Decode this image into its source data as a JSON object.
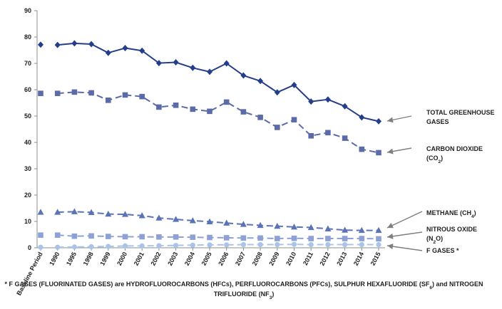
{
  "chart_data": {
    "type": "line",
    "categories": [
      "Baseline Period",
      "1990",
      "1995",
      "1998",
      "1999",
      "2000",
      "2001",
      "2002",
      "2003",
      "2004",
      "2005",
      "2006",
      "2007",
      "2008",
      "2009",
      "2010",
      "2011",
      "2012",
      "2013",
      "2014",
      "2015"
    ],
    "ylim": [
      0,
      90
    ],
    "yticks": [
      "0",
      "10",
      "20",
      "30",
      "40",
      "50",
      "60",
      "70",
      "80",
      "90"
    ],
    "grid": false,
    "series": [
      {
        "key": "total",
        "label_lines": [
          "TOTAL GREENHOUSE",
          "GASES"
        ],
        "color": "#253E8C",
        "marker": "diamond",
        "dashed": false,
        "values": [
          77.1,
          77.0,
          77.6,
          77.3,
          74.0,
          75.8,
          74.8,
          70.1,
          70.4,
          68.3,
          66.8,
          70.0,
          65.4,
          63.3,
          59.0,
          61.8,
          55.5,
          56.3,
          53.7,
          49.5,
          48.0
        ]
      },
      {
        "key": "co2",
        "label_lines": [
          "CARBON DIOXIDE",
          "(CO",
          "2",
          ")"
        ],
        "color": "#5B6BA7",
        "marker": "square",
        "dashed": true,
        "values": [
          58.6,
          58.6,
          59.1,
          58.8,
          56.0,
          58.0,
          57.4,
          53.4,
          54.1,
          52.6,
          51.8,
          55.3,
          51.6,
          49.5,
          45.7,
          48.6,
          42.5,
          43.7,
          41.6,
          37.4,
          36.1
        ]
      },
      {
        "key": "ch4",
        "label_lines": [
          "METHANE (CH",
          "4",
          ")"
        ],
        "color": "#5A72B6",
        "marker": "triangle",
        "dashed": true,
        "values": [
          13.5,
          13.5,
          13.7,
          13.4,
          12.8,
          12.7,
          12.2,
          11.3,
          10.8,
          10.3,
          9.9,
          9.4,
          8.9,
          8.5,
          8.2,
          7.9,
          7.7,
          7.2,
          6.7,
          6.6,
          6.6
        ]
      },
      {
        "key": "n2o",
        "label_lines": [
          "NITROUS OXIDE",
          "(N",
          "2",
          "O)"
        ],
        "color": "#8DA1D6",
        "marker": "square",
        "dashed": true,
        "values": [
          4.8,
          4.8,
          4.4,
          4.5,
          4.3,
          4.2,
          4.2,
          4.1,
          4.1,
          4.0,
          3.9,
          3.8,
          3.7,
          3.7,
          3.5,
          3.6,
          3.5,
          3.5,
          3.5,
          3.5,
          3.4
        ]
      },
      {
        "key": "fgas",
        "label_lines": [
          "F GASES *"
        ],
        "color": "#A9C4E8",
        "marker": "circle",
        "dashed": true,
        "values": [
          0.2,
          0.2,
          0.3,
          0.4,
          0.5,
          0.7,
          0.7,
          0.8,
          0.9,
          1.0,
          1.1,
          1.1,
          1.2,
          1.2,
          1.2,
          1.3,
          1.2,
          1.2,
          1.2,
          1.2,
          1.2
        ]
      }
    ],
    "footnote_line1": [
      "* F GASES (FLUORINATED GASES) are HYDROFLUOROCARBONS (HFCs), PERFLUOROCARBONS (PFCs), SULPHUR HEXAFLUORIDE (SF",
      "6",
      ") and NITROGEN"
    ],
    "footnote_line2": [
      "TRIFLUORIDE (NF",
      "3",
      ")"
    ]
  }
}
